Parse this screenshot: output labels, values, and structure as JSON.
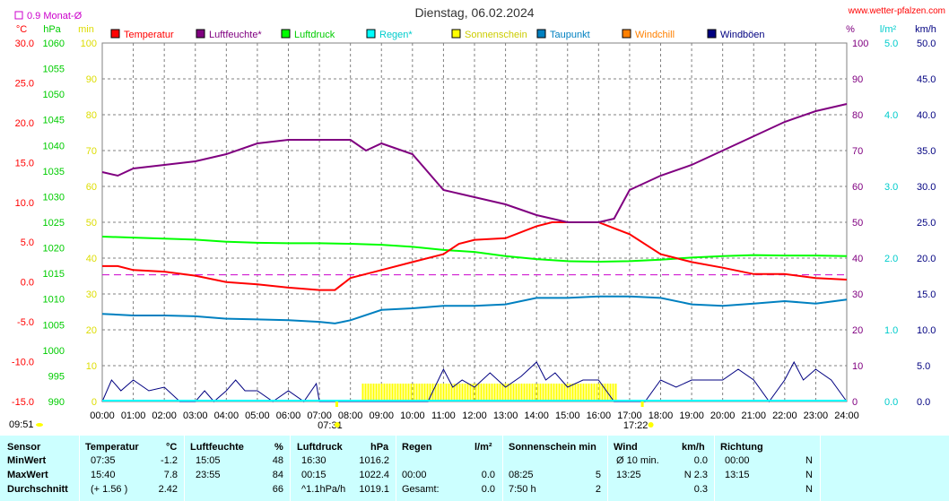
{
  "header": {
    "title": "Dienstag, 06.02.2024",
    "site": "www.wetter-pfalzen.com",
    "avg_label": "0.9 Monat-Ø",
    "sunrise": "07:31",
    "sunset": "17:22",
    "bottom_left": "09:51"
  },
  "axes": {
    "temp_unit": "°C",
    "hpa_unit": "hPa",
    "min_unit": "min",
    "pct_unit": "%",
    "lm2_unit": "l/m²",
    "kmh_unit": "km/h",
    "temp_ticks": [
      "30.0",
      "25.0",
      "20.0",
      "15.0",
      "10.0",
      "5.0",
      "0.0",
      "-5.0",
      "-10.0",
      "-15.0"
    ],
    "hpa_ticks": [
      "1060",
      "1055",
      "1050",
      "1045",
      "1040",
      "1035",
      "1030",
      "1025",
      "1020",
      "1015",
      "1010",
      "1005",
      "1000",
      "995",
      "990"
    ],
    "min_ticks": [
      "100",
      "90",
      "80",
      "70",
      "60",
      "50",
      "40",
      "30",
      "20",
      "10",
      "0"
    ],
    "pct_ticks": [
      "100",
      "90",
      "80",
      "70",
      "60",
      "50",
      "40",
      "30",
      "20",
      "10",
      "0"
    ],
    "lm2_ticks": [
      "5.0",
      "4.0",
      "3.0",
      "2.0",
      "1.0",
      "0.0"
    ],
    "kmh_ticks": [
      "50.0",
      "45.0",
      "40.0",
      "35.0",
      "30.0",
      "25.0",
      "20.0",
      "15.0",
      "10.0",
      "5.0",
      "0.0"
    ],
    "x_ticks": [
      "00:00",
      "01:00",
      "02:00",
      "03:00",
      "04:00",
      "05:00",
      "06:00",
      "07:00",
      "08:00",
      "09:00",
      "10:00",
      "11:00",
      "12:00",
      "13:00",
      "14:00",
      "15:00",
      "16:00",
      "17:00",
      "18:00",
      "19:00",
      "20:00",
      "21:00",
      "22:00",
      "23:00",
      "24:00"
    ]
  },
  "legend": [
    {
      "label": "Temperatur",
      "color": "#ff0000"
    },
    {
      "label": "Luftfeuchte*",
      "color": "#800080"
    },
    {
      "label": "Luftdruck",
      "color": "#00ff00"
    },
    {
      "label": "Regen*",
      "color": "#00ffff"
    },
    {
      "label": "Sonnenschein",
      "color": "#ffff00"
    },
    {
      "label": "Taupunkt",
      "color": "#0080c0"
    },
    {
      "label": "Windchill",
      "color": "#ff8000"
    },
    {
      "label": "Windböen",
      "color": "#000080"
    }
  ],
  "chart_data": {
    "type": "line",
    "title": "Dienstag, 06.02.2024",
    "x_unit": "hour",
    "xlim": [
      0,
      24
    ],
    "temp_ylim": [
      -15,
      30
    ],
    "hpa_ylim": [
      990,
      1060
    ],
    "pct_ylim": [
      0,
      100
    ],
    "kmh_ylim": [
      0,
      50
    ],
    "month_avg_temp": 0.9,
    "series": [
      {
        "name": "Temperatur",
        "color": "#ff0000",
        "x": [
          0,
          0.5,
          1,
          2,
          3,
          4,
          5,
          6,
          7,
          7.5,
          8,
          9,
          10,
          11,
          11.5,
          12,
          13,
          14,
          14.5,
          15,
          15.5,
          16,
          17,
          18,
          19,
          20,
          21,
          22,
          23,
          24
        ],
        "y": [
          2.0,
          2.0,
          1.5,
          1.3,
          0.8,
          0.0,
          -0.3,
          -0.7,
          -1.0,
          -1.0,
          0.5,
          1.5,
          2.5,
          3.5,
          4.8,
          5.3,
          5.5,
          7.0,
          7.5,
          7.5,
          7.5,
          7.5,
          6.0,
          3.5,
          2.5,
          1.8,
          1.0,
          1.0,
          0.5,
          0.3
        ]
      },
      {
        "name": "Luftfeuchte*",
        "color": "#800080",
        "x": [
          0,
          0.5,
          1,
          2,
          3,
          4,
          5,
          6,
          7,
          8,
          8.5,
          9,
          10,
          11,
          11.5,
          12,
          13,
          14,
          15,
          16,
          16.5,
          17,
          18,
          19,
          20,
          21,
          22,
          23,
          24
        ],
        "y": [
          64,
          63,
          65,
          66,
          67,
          69,
          72,
          73,
          73,
          73,
          70,
          72,
          69,
          59,
          58,
          57,
          55,
          52,
          50,
          50,
          51,
          59,
          63,
          66,
          70,
          74,
          78,
          81,
          83
        ]
      },
      {
        "name": "Luftdruck",
        "color": "#00ff00",
        "x": [
          0,
          1,
          2,
          3,
          4,
          5,
          6,
          7,
          8,
          9,
          10,
          11,
          12,
          13,
          14,
          15,
          16,
          17,
          18,
          19,
          20,
          21,
          22,
          23,
          24
        ],
        "y": [
          1022.2,
          1022.0,
          1021.8,
          1021.6,
          1021.2,
          1021.0,
          1020.9,
          1020.9,
          1020.8,
          1020.6,
          1020.2,
          1019.6,
          1019.2,
          1018.4,
          1017.8,
          1017.4,
          1017.3,
          1017.4,
          1017.7,
          1018.1,
          1018.4,
          1018.6,
          1018.5,
          1018.5,
          1018.4
        ]
      },
      {
        "name": "Taupunkt",
        "color": "#0080c0",
        "x": [
          0,
          1,
          2,
          3,
          4,
          5,
          6,
          7,
          7.5,
          8,
          9,
          10,
          11,
          12,
          13,
          14,
          15,
          16,
          17,
          18,
          19,
          20,
          21,
          22,
          23,
          24
        ],
        "y": [
          -4.0,
          -4.2,
          -4.2,
          -4.3,
          -4.6,
          -4.7,
          -4.8,
          -5.0,
          -5.2,
          -4.8,
          -3.5,
          -3.3,
          -3.0,
          -3.0,
          -2.8,
          -2.0,
          -2.0,
          -1.8,
          -1.8,
          -2.0,
          -2.8,
          -3.0,
          -2.7,
          -2.4,
          -2.7,
          -2.2
        ]
      },
      {
        "name": "Windböen",
        "color": "#000080",
        "x": [
          0,
          0.3,
          0.6,
          1,
          1.5,
          2,
          2.5,
          3,
          3.3,
          3.6,
          4,
          4.3,
          4.6,
          5,
          5.5,
          6,
          6.5,
          6.9,
          7,
          8,
          8.5,
          9,
          9.5,
          10,
          10.5,
          11,
          11.3,
          11.6,
          12,
          12.5,
          13,
          13.5,
          14,
          14.3,
          14.6,
          15,
          15.5,
          16,
          16.5,
          17,
          17.5,
          18,
          18.5,
          19,
          19.5,
          20,
          20.5,
          21,
          21.5,
          22,
          22.3,
          22.6,
          23,
          23.5,
          24
        ],
        "y": [
          0,
          3,
          1.5,
          3,
          1.5,
          2,
          0,
          0,
          1.5,
          0,
          1.5,
          3,
          1.5,
          1.5,
          0,
          1.5,
          0,
          2.5,
          0,
          0,
          0,
          0,
          0,
          0,
          0,
          4.5,
          2,
          3,
          2,
          4,
          2,
          3.5,
          5.5,
          3,
          4,
          2,
          3,
          3,
          0,
          0,
          0,
          3,
          2,
          3,
          3,
          3,
          4.5,
          3,
          0,
          3,
          5.5,
          3,
          4.5,
          3,
          0
        ]
      },
      {
        "name": "Sonnenschein",
        "color": "#ffff00",
        "x": [
          8.4,
          16.6
        ],
        "y": [
          5,
          5
        ]
      }
    ]
  },
  "table": {
    "headers": [
      "Sensor",
      "Temperatur",
      "°C",
      "Luftfeuchte",
      "%",
      "Luftdruck",
      "hPa",
      "Regen",
      "l/m²",
      "Sonnenschein min",
      "Wind",
      "km/h",
      "Richtung"
    ],
    "rows": [
      {
        "label": "MinWert",
        "temp_time": "07:35",
        "temp_val": "-1.2",
        "hum_time": "15:05",
        "hum_val": "48",
        "pres_time": "16:30",
        "pres_val": "1016.2",
        "rain_time": "",
        "rain_val": "",
        "sun_time": "",
        "sun_val": "",
        "wind_time": "Ø 10 min.",
        "wind_val": "0.0",
        "dir_time": "00:00",
        "dir_val": "N"
      },
      {
        "label": "MaxWert",
        "temp_time": "15:40",
        "temp_val": "7.8",
        "hum_time": "23:55",
        "hum_val": "84",
        "pres_time": "00:15",
        "pres_val": "1022.4",
        "rain_time": "00:00",
        "rain_val": "0.0",
        "sun_time": "08:25",
        "sun_val": "5",
        "wind_time": "13:25",
        "wind_val": "N 2.3",
        "dir_time": "13:15",
        "dir_val": "N"
      },
      {
        "label": "Durchschnitt",
        "temp_time": "(+ 1.56 )",
        "temp_val": "2.42",
        "hum_time": "",
        "hum_val": "66",
        "pres_time": "^1.1hPa/h",
        "pres_val": "1019.1",
        "rain_time": "Gesamt:",
        "rain_val": "0.0",
        "sun_time": "7:50 h",
        "sun_val": "2",
        "wind_time": "",
        "wind_val": "0.3",
        "dir_time": "",
        "dir_val": "N"
      }
    ]
  }
}
